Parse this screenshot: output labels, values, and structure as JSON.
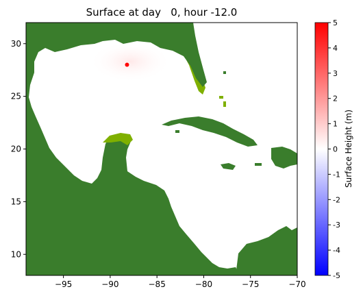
{
  "chart_data": {
    "type": "heatmap",
    "title": "Surface at day   0, hour -12.0",
    "xlim": [
      -99,
      -70
    ],
    "ylim": [
      8,
      32
    ],
    "x_ticks": [
      -95,
      -90,
      -85,
      -80,
      -75,
      -70
    ],
    "x_tick_labels": [
      "−95",
      "−90",
      "−85",
      "−80",
      "−75",
      "−70"
    ],
    "y_ticks": [
      10,
      15,
      20,
      25,
      30
    ],
    "y_tick_labels": [
      "10",
      "15",
      "20",
      "25",
      "30"
    ],
    "marker": {
      "lon": -88.2,
      "lat": 28.0,
      "color": "#ff0000"
    },
    "colorbar": {
      "label": "Surface Height (m)",
      "range": [
        -5,
        5
      ],
      "ticks": [
        5,
        4,
        3,
        2,
        1,
        0,
        -1,
        -2,
        -3,
        -4,
        -5
      ],
      "tick_labels": [
        "5",
        "4",
        "3",
        "2",
        "1",
        "0",
        "-1",
        "-2",
        "-3",
        "-4",
        "-5"
      ],
      "colors": {
        "low": "#0000ff",
        "mid": "#ffffff",
        "high": "#ff0000"
      }
    },
    "land_color": "#3a7d2c",
    "shelf_color": "#7fb000",
    "water_color": "#ffffff"
  }
}
